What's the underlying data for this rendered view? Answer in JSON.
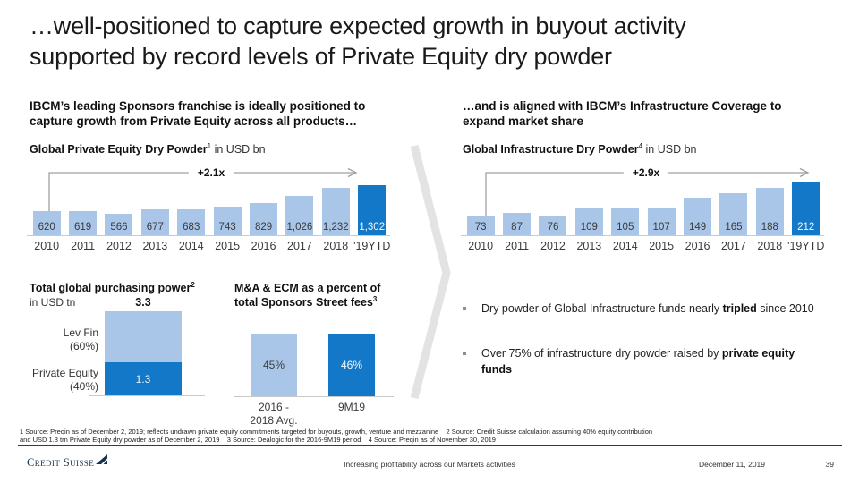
{
  "slide": {
    "title_line1": "…well-positioned to capture expected growth in buyout activity",
    "title_line2": "supported by record levels of Private Equity dry powder"
  },
  "left": {
    "headline_line1": "IBCM’s leading Sponsors franchise is ideally positioned to",
    "headline_line2": "capture growth from Private Equity across all products…",
    "chart_title": "Global Private Equity Dry Powder",
    "chart_sup": "1",
    "chart_unit": " in USD bn",
    "growth_label": "+2.1x"
  },
  "right": {
    "headline_line1": "…and is aligned with IBCM’s Infrastructure Coverage to",
    "headline_line2": "expand market share",
    "chart_title": "Global Infrastructure Dry Powder",
    "chart_sup": "4",
    "chart_unit": " in USD bn",
    "growth_label": "+2.9x",
    "bullets": [
      {
        "pre": "Dry powder of Global Infrastructure funds nearly ",
        "bold": "tripled",
        "post": " since 2010"
      },
      {
        "pre": "Over 75% of infrastructure dry powder raised by ",
        "bold": "private equity funds",
        "post": ""
      }
    ]
  },
  "purchasing_power": {
    "title": "Total global purchasing power",
    "title_sup": "2",
    "unit": "in USD tn",
    "total_label": "3.3",
    "top_label_line1": "Lev Fin",
    "top_label_line2": "(60%)",
    "bottom_label_line1": "Private Equity",
    "bottom_label_line2": "(40%)",
    "bottom_value": "1.3"
  },
  "fees": {
    "title_line1": "M&A & ECM as a percent of",
    "title_line2": "total Sponsors Street fees",
    "title_sup": "3",
    "bar1_value": "45%",
    "bar2_value": "46%",
    "bar1_label_line1": "2016 -",
    "bar1_label_line2": "2018 Avg.",
    "bar2_label": "9M19"
  },
  "chart_data": [
    {
      "type": "bar",
      "title": "Global Private Equity Dry Powder",
      "ylabel": "USD bn",
      "categories": [
        "2010",
        "2011",
        "2012",
        "2013",
        "2014",
        "2015",
        "2016",
        "2017",
        "2018",
        "'19YTD"
      ],
      "values": [
        620,
        619,
        566,
        677,
        683,
        743,
        829,
        1026,
        1232,
        1302
      ],
      "labels": [
        "620",
        "619",
        "566",
        "677",
        "683",
        "743",
        "829",
        "1,026",
        "1,232",
        "1,302"
      ],
      "annotation": "+2.1x",
      "highlight_index": 9,
      "grid": false,
      "legend": false
    },
    {
      "type": "bar",
      "title": "Global Infrastructure Dry Powder",
      "ylabel": "USD bn",
      "categories": [
        "2010",
        "2011",
        "2012",
        "2013",
        "2014",
        "2015",
        "2016",
        "2017",
        "2018",
        "'19YTD"
      ],
      "values": [
        73,
        87,
        76,
        109,
        105,
        107,
        149,
        165,
        188,
        212
      ],
      "labels": [
        "73",
        "87",
        "76",
        "109",
        "105",
        "107",
        "149",
        "165",
        "188",
        "212"
      ],
      "annotation": "+2.9x",
      "highlight_index": 9,
      "grid": false,
      "legend": false
    },
    {
      "type": "bar",
      "title": "Total global purchasing power",
      "ylabel": "USD tn",
      "stacked": true,
      "categories": [
        "Total"
      ],
      "series": [
        {
          "name": "Private Equity (40%)",
          "values": [
            1.3
          ]
        },
        {
          "name": "Lev Fin (60%)",
          "values": [
            2.0
          ]
        }
      ],
      "total_label": 3.3
    },
    {
      "type": "bar",
      "title": "M&A & ECM as a percent of total Sponsors Street fees",
      "categories": [
        "2016 - 2018 Avg.",
        "9M19"
      ],
      "values": [
        45,
        46
      ],
      "labels": [
        "45%",
        "46%"
      ]
    }
  ],
  "footnotes": {
    "line1": "1 Source: Preqin as of December 2, 2019; reflects undrawn private equity commitments targeted for buyouts, growth, venture and mezzanine    2 Source: Credit Suisse calculation assuming 40% equity contribution",
    "line2": "and USD 1.3 trn Private Equity dry powder as of December 2, 2019    3 Source: Dealogic for the 2016-9M19 period    4 Source: Preqin as of November 30, 2019"
  },
  "footer": {
    "brand": "Credit Suisse",
    "center": "Increasing profitability across our Markets activities",
    "date": "December 11, 2019",
    "page": "39"
  },
  "colors": {
    "light_blue": "#A9C6E8",
    "dark_blue": "#1478C8",
    "arrow_gray": "#A0A0A0",
    "axis_gray": "#C9C9C9",
    "chevron_gray": "#E3E3E3",
    "logo_navy": "#15324C"
  }
}
